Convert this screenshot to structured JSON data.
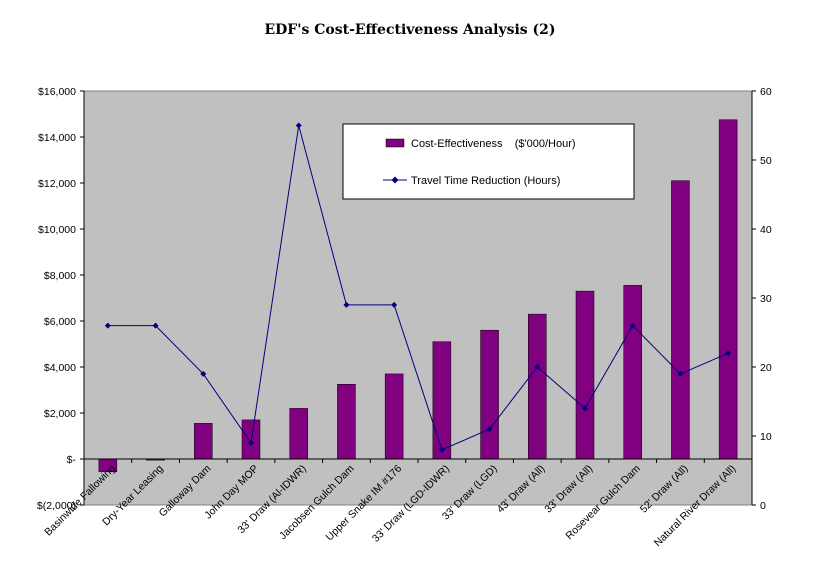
{
  "title": "EDF's Cost-Effectiveness Analysis (2)",
  "chart_data": {
    "type": "bar",
    "title": "EDF's Cost-Effectiveness Analysis (2)",
    "categories": [
      "Basinwide Fallowing",
      "Dry-Year Leasing",
      "Galloway Dam",
      "John Day MOP",
      "33' Draw (Al-IDWR)",
      "Jacobsen Gulch Dam",
      "Upper Snake IM #176",
      "33' Draw (LGD-IDWR)",
      "33' Draw (LGD)",
      "43' Draw (All)",
      "33' Draw (All)",
      "Rosevear Gulch Dam",
      "52' Draw (All)",
      "Natural River Draw (All)"
    ],
    "series": [
      {
        "name": "Cost-Effectiveness    ($'000/Hour)",
        "type": "bar",
        "axis": "left",
        "color": "#800080",
        "values": [
          -550,
          -50,
          1550,
          1700,
          2200,
          3250,
          3700,
          5100,
          5600,
          6300,
          7300,
          7550,
          12100,
          14750
        ]
      },
      {
        "name": "Travel Time Reduction (Hours)",
        "type": "line",
        "axis": "right",
        "color": "#000080",
        "values": [
          26,
          26,
          19,
          9,
          55,
          29,
          29,
          8,
          11,
          20,
          14,
          26,
          19,
          22
        ]
      }
    ],
    "y_left": {
      "min": -2000,
      "max": 16000,
      "step": 2000,
      "tick_labels": [
        "$(2,000)",
        "$-",
        "$2,000",
        "$4,000",
        "$6,000",
        "$8,000",
        "$10,000",
        "$12,000",
        "$14,000",
        "$16,000"
      ]
    },
    "y_right": {
      "min": 0,
      "max": 60,
      "step": 10,
      "tick_labels": [
        "0",
        "10",
        "20",
        "30",
        "40",
        "50",
        "60"
      ]
    },
    "grid": false,
    "plot_background": "#c0c0c0",
    "legend_position": "top-right inside plot"
  }
}
